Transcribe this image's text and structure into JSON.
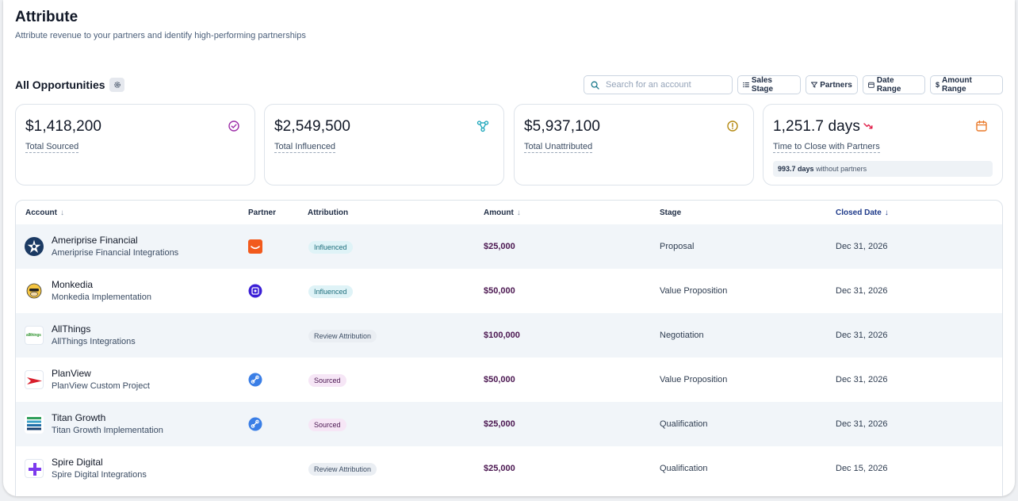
{
  "header": {
    "title": "Attribute",
    "subtitle": "Attribute revenue to your partners and identify high-performing partnerships"
  },
  "section": {
    "title": "All Opportunities",
    "settings_icon": "gear-icon"
  },
  "search": {
    "placeholder": "Search for an account",
    "value": ""
  },
  "filters": [
    {
      "label": "Sales Stage",
      "icon": "list-filter-icon"
    },
    {
      "label": "Partners",
      "icon": "funnel-icon"
    },
    {
      "label": "Date Range",
      "icon": "calendar-icon"
    },
    {
      "label": "Amount Range",
      "icon": "dollar-icon"
    }
  ],
  "cards": [
    {
      "value": "$1,418,200",
      "label": "Total Sourced",
      "icon": "check-circle-icon",
      "icon_color": "#9d2fa8"
    },
    {
      "value": "$2,549,500",
      "label": "Total Influenced",
      "icon": "network-icon",
      "icon_color": "#14a3b8"
    },
    {
      "value": "$5,937,100",
      "label": "Total Unattributed",
      "icon": "alert-circle-icon",
      "icon_color": "#b58a12"
    },
    {
      "value": "1,251.7 days",
      "label": "Time to Close with Partners",
      "icon": "calendar-icon",
      "icon_color": "#ea7a2a",
      "trend_icon": "trending-down-icon",
      "trend_color": "#e11d48",
      "note_value": "993.7 days",
      "note_text": "without partners"
    }
  ],
  "table": {
    "columns": {
      "account": "Account",
      "partner": "Partner",
      "attribution": "Attribution",
      "amount": "Amount",
      "stage": "Stage",
      "closed_date": "Closed Date"
    },
    "rows": [
      {
        "name": "Ameriprise Financial",
        "sub": "Ameriprise Financial Integrations",
        "partner_icon": "orange-partner-icon",
        "attribution": "Influenced",
        "attribution_type": "influenced",
        "amount": "$25,000",
        "stage": "Proposal",
        "closed": "Dec 31, 2026"
      },
      {
        "name": "Monkedia",
        "sub": "Monkedia Implementation",
        "partner_icon": "purple-partner-icon",
        "attribution": "Influenced",
        "attribution_type": "influenced",
        "amount": "$50,000",
        "stage": "Value Proposition",
        "closed": "Dec 31, 2026"
      },
      {
        "name": "AllThings",
        "sub": "AllThings Integrations",
        "partner_icon": "",
        "attribution": "Review Attribution",
        "attribution_type": "review",
        "amount": "$100,000",
        "stage": "Negotiation",
        "closed": "Dec 31, 2026"
      },
      {
        "name": "PlanView",
        "sub": "PlanView Custom Project",
        "partner_icon": "blue-link-partner-icon",
        "attribution": "Sourced",
        "attribution_type": "sourced",
        "amount": "$50,000",
        "stage": "Value Proposition",
        "closed": "Dec 31, 2026"
      },
      {
        "name": "Titan Growth",
        "sub": "Titan Growth Implementation",
        "partner_icon": "blue-link-partner-icon",
        "attribution": "Sourced",
        "attribution_type": "sourced",
        "amount": "$25,000",
        "stage": "Qualification",
        "closed": "Dec 31, 2026"
      },
      {
        "name": "Spire Digital",
        "sub": "Spire Digital Integrations",
        "partner_icon": "",
        "attribution": "Review Attribution",
        "attribution_type": "review",
        "amount": "$25,000",
        "stage": "Qualification",
        "closed": "Dec 15, 2026"
      }
    ]
  },
  "logo_text": {
    "allthings": "allthings"
  }
}
